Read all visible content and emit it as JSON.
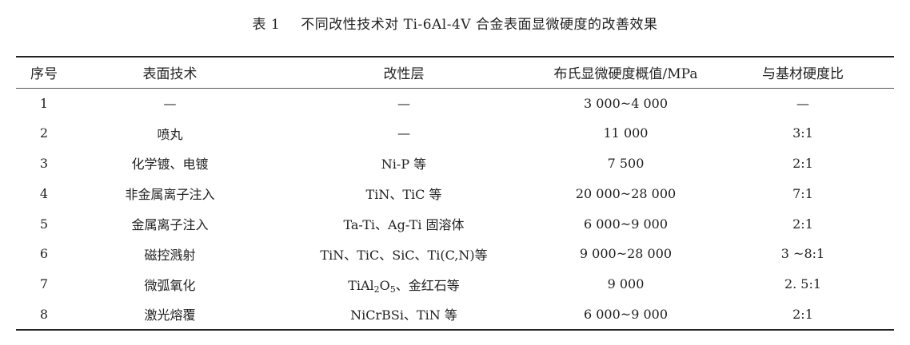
{
  "caption": {
    "number": "表 1",
    "title": "不同改性技术对 Ti-6Al-4V 合金表面显微硬度的改善效果"
  },
  "table": {
    "headers": [
      "序号",
      "表面技术",
      "改性层",
      "布氏显微硬度概值/MPa",
      "与基材硬度比"
    ],
    "rows": [
      [
        "1",
        "—",
        "—",
        "3 000~4 000",
        "—"
      ],
      [
        "2",
        "喷丸",
        "—",
        "11 000",
        "3:1"
      ],
      [
        "3",
        "化学镀、电镀",
        "Ni-P 等",
        "7 500",
        "2:1"
      ],
      [
        "4",
        "非金属离子注入",
        "TiN、TiC 等",
        "20 000~28 000",
        "7:1"
      ],
      [
        "5",
        "金属离子注入",
        "Ta-Ti、Ag-Ti 固溶体",
        "6 000~9 000",
        "2:1"
      ],
      [
        "6",
        "磁控溅射",
        "TiN、TiC、SiC、Ti(C,N)等",
        "9 000~28 000",
        "3 ~8:1"
      ],
      [
        "7",
        "微弧氧化",
        {
          "p1": "TiAl",
          "s1": "2",
          "p2": "O",
          "s2": "5",
          "p3": "、金红石等"
        },
        "9 000",
        "2. 5:1"
      ],
      [
        "8",
        "激光熔覆",
        "NiCrBSi、TiN 等",
        "6 000~9 000",
        "2:1"
      ]
    ]
  }
}
